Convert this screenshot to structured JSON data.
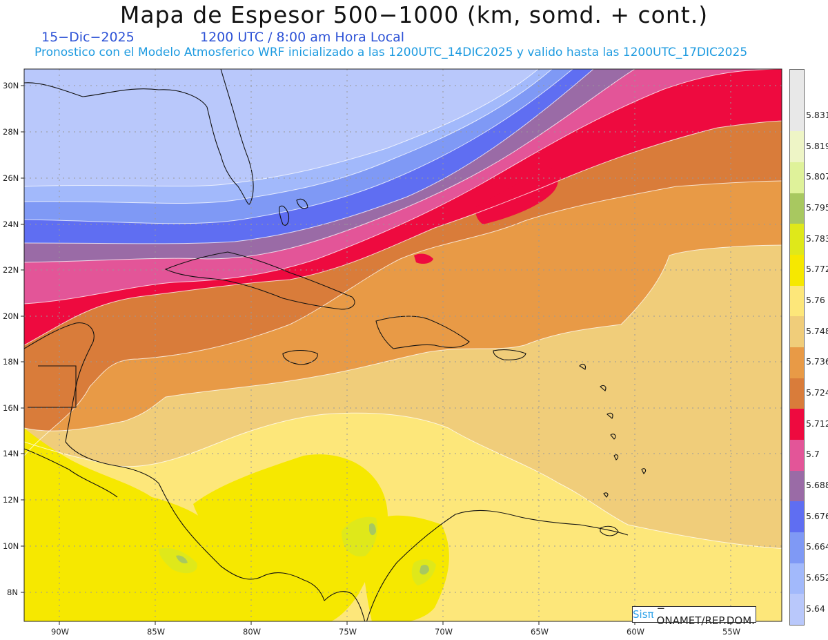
{
  "header": {
    "title": "Mapa de Espesor 500−1000 (km, somd. + cont.)",
    "date": "15−Dic−2025",
    "time": "1200 UTC / 8:00 am Hora Local",
    "subtitle": "Pronostico con el Modelo Atmosferico WRF inicializado a las 1200UTC_14DIC2025 y valido hasta las  1200UTC_17DIC2025"
  },
  "map": {
    "lat_labels": [
      "30N",
      "28N",
      "26N",
      "24N",
      "22N",
      "20N",
      "18N",
      "16N",
      "14N",
      "12N",
      "10N",
      "8N"
    ],
    "lon_labels": [
      "90W",
      "85W",
      "80W",
      "75W",
      "70W",
      "65W",
      "60W",
      "55W"
    ],
    "grid": true
  },
  "legend": {
    "labels": [
      "5.831",
      "5.819",
      "5.807",
      "5.795",
      "5.783",
      "5.772",
      "5.76",
      "5.748",
      "5.736",
      "5.724",
      "5.712",
      "5.7",
      "5.688",
      "5.676",
      "5.664",
      "5.652",
      "5.64"
    ],
    "colors": [
      "#e8e8e8",
      "#eef5c6",
      "#dff29a",
      "#a8c860",
      "#dfe81a",
      "#f6e800",
      "#fde77a",
      "#f0cd7a",
      "#e89a46",
      "#d97c3a",
      "#ee0a3f",
      "#e35598",
      "#9a6ba6",
      "#5f6ef2",
      "#7f99f5",
      "#a2b9fb",
      "#b9c8fb"
    ]
  },
  "credit": {
    "brand": "Sisπ",
    "text": "− ONAMET/REP.DOM."
  }
}
